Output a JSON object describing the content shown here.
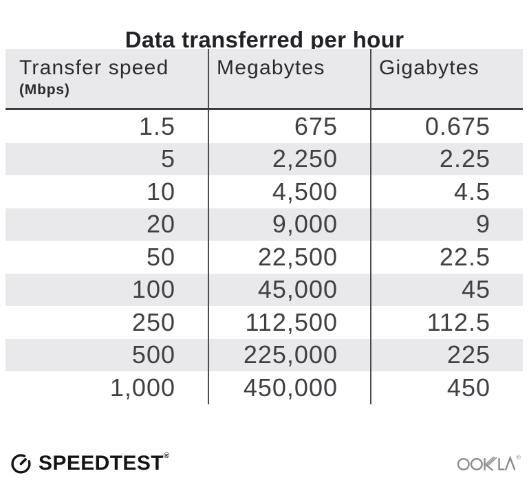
{
  "title": "Data transferred per hour",
  "table": {
    "columns": [
      {
        "label": "Transfer speed",
        "sublabel": "(Mbps)"
      },
      {
        "label": "Megabytes"
      },
      {
        "label": "Gigabytes"
      }
    ],
    "rows": [
      [
        "1.5",
        "675",
        "0.675"
      ],
      [
        "5",
        "2,250",
        "2.25"
      ],
      [
        "10",
        "4,500",
        "4.5"
      ],
      [
        "20",
        "9,000",
        "9"
      ],
      [
        "50",
        "22,500",
        "22.5"
      ],
      [
        "100",
        "45,000",
        "45"
      ],
      [
        "250",
        "112,500",
        "112.5"
      ],
      [
        "500",
        "225,000",
        "225"
      ],
      [
        "1,000",
        "450,000",
        "450"
      ]
    ]
  },
  "footer": {
    "brand": "SPEEDTEST",
    "brand_trademark": "®",
    "company": "OOKLA",
    "company_trademark": "®"
  },
  "colors": {
    "stripe_bg": "#e9e9eb",
    "divider": "#4b4b4d",
    "header_underline": "#3d3d3f",
    "title_text": "#232226",
    "header_text": "#2b2a2e",
    "number_text": "#403f43",
    "brand_black": "#141414",
    "company_gray": "#8c8c8c"
  },
  "chart_data": {
    "type": "table",
    "title": "Data transferred per hour",
    "columns": [
      "Transfer speed (Mbps)",
      "Megabytes",
      "Gigabytes"
    ],
    "rows": [
      [
        1.5,
        675,
        0.675
      ],
      [
        5,
        2250,
        2.25
      ],
      [
        10,
        4500,
        4.5
      ],
      [
        20,
        9000,
        9
      ],
      [
        50,
        22500,
        22.5
      ],
      [
        100,
        45000,
        45
      ],
      [
        250,
        112500,
        112.5
      ],
      [
        500,
        225000,
        225
      ],
      [
        1000,
        450000,
        450
      ]
    ],
    "layout": {
      "striped_rows": true,
      "column_dividers": true,
      "number_alignment": "right"
    }
  }
}
